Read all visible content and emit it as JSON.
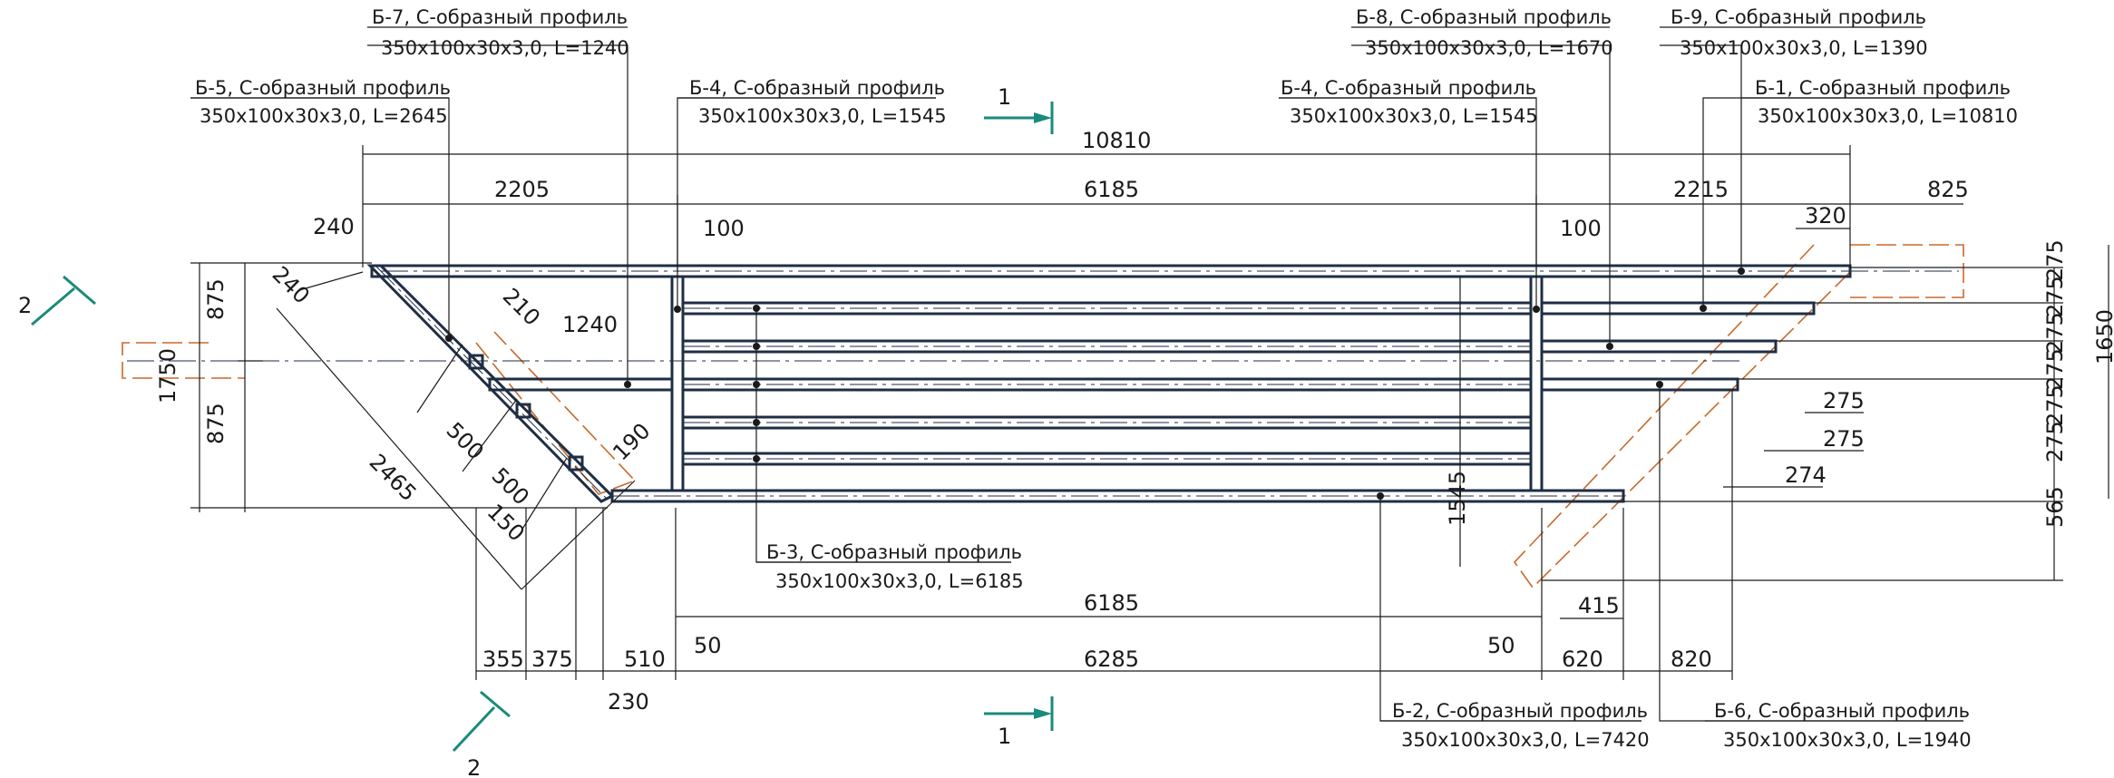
{
  "labels": {
    "b7_title": "Б-7, С-образный профиль",
    "b7_spec": "350x100x30x3,0, L=1240",
    "b5_title": "Б-5, С-образный профиль",
    "b5_spec": "350x100x30x3,0, L=2645",
    "b4a_title": "Б-4, С-образный профиль",
    "b4a_spec": "350x100x30x3,0, L=1545",
    "b8_title": "Б-8, С-образный профиль",
    "b8_spec": "350x100x30x3,0, L=1670",
    "b9_title": "Б-9, С-образный профиль",
    "b9_spec": "350x100x30x3,0, L=1390",
    "b4b_title": "Б-4, С-образный профиль",
    "b4b_spec": "350x100x30x3,0, L=1545",
    "b1_title": "Б-1, С-образный профиль",
    "b1_spec": "350x100x30x3,0, L=10810",
    "b3_title": "Б-3, С-образный профиль",
    "b3_spec": "350x100x30x3,0, L=6185",
    "b2_title": "Б-2, С-образный профиль",
    "b2_spec": "350x100x30x3,0, L=7420",
    "b6_title": "Б-6, С-образный профиль",
    "b6_spec": "350x100x30x3,0, L=1940"
  },
  "sections": {
    "s1_top": "1",
    "s1_bottom": "1",
    "s2_top": "2",
    "s2_bottom": "2"
  },
  "dims": {
    "d10810": "10810",
    "d2205": "2205",
    "d6185_top": "6185",
    "d2215": "2215",
    "d825": "825",
    "d320": "320",
    "d240a": "240",
    "d240b": "240",
    "d100a": "100",
    "d100b": "100",
    "d210": "210",
    "d1240": "1240",
    "d875a": "875",
    "d875b": "875",
    "d1750": "1750",
    "d500a": "500",
    "d500b": "500",
    "d190": "190",
    "d2465": "2465",
    "d150": "150",
    "d1545": "1545",
    "d6185_bot": "6185",
    "d50a": "50",
    "d50b": "50",
    "d415": "415",
    "d355": "355",
    "d375": "375",
    "d510": "510",
    "d6285": "6285",
    "d620": "620",
    "d820": "820",
    "d230": "230",
    "d275a": "275",
    "d275b": "275",
    "d274": "274",
    "r275_1": "275",
    "r275_2": "275",
    "r275_3": "275",
    "r275_4": "275",
    "r275_5": "275",
    "r275_6": "275",
    "d1650": "1650",
    "d565": "565"
  }
}
